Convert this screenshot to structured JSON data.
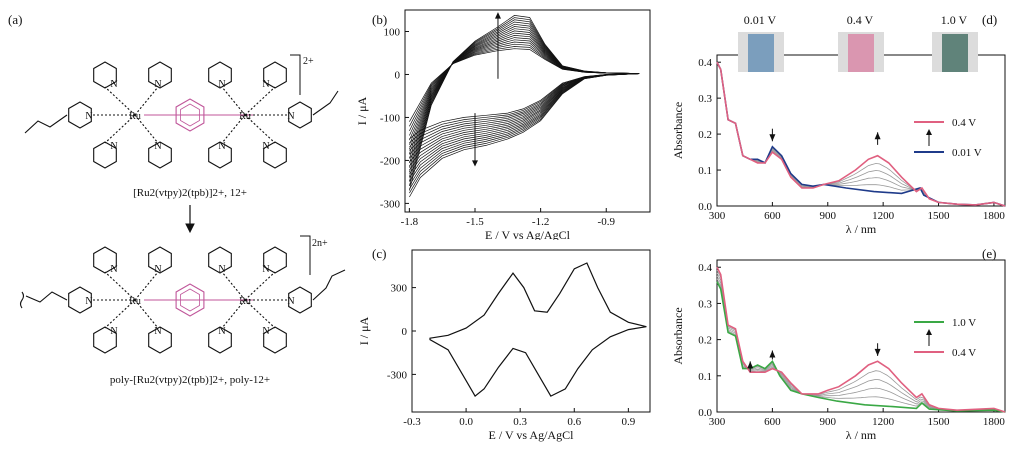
{
  "panel_a": {
    "label": "(a)",
    "monomer_charge": "2+",
    "monomer_caption": "[Ru2(vtpy)2(tpb)]2+, 12+",
    "polymer_charge": "2n+",
    "polymer_caption": "poly-[Ru2(vtpy)2(tpb)]2+, poly-12+",
    "ru_label": "Ru",
    "n_label": "N"
  },
  "colors": {
    "black": "#111111",
    "magenta": "#c0569a",
    "pink": "#e06080",
    "navy": "#1f3b8a",
    "green": "#3aa845",
    "gray": "#999999"
  },
  "chart_data": [
    {
      "panel": "(b)",
      "type": "line",
      "xlabel": "E / V vs Ag/AgCl",
      "ylabel": "I / μA",
      "xlim": [
        -1.82,
        -0.7
      ],
      "ylim": [
        -320,
        150
      ],
      "xticks": [
        -1.8,
        -1.5,
        -1.2,
        -0.9
      ],
      "yticks": [
        100,
        0,
        -100,
        -200,
        -300
      ],
      "n_cycles": 16,
      "first_cycle": {
        "anodic": [
          [
            -1.8,
            -110
          ],
          [
            -1.7,
            -20
          ],
          [
            -1.6,
            25
          ],
          [
            -1.5,
            45
          ],
          [
            -1.4,
            55
          ],
          [
            -1.32,
            60
          ],
          [
            -1.25,
            58
          ],
          [
            -1.18,
            35
          ],
          [
            -1.1,
            12
          ],
          [
            -1.0,
            5
          ],
          [
            -0.9,
            3
          ],
          [
            -0.75,
            2
          ]
        ],
        "cathodic": [
          [
            -0.75,
            2
          ],
          [
            -0.9,
            0
          ],
          [
            -1.0,
            -5
          ],
          [
            -1.1,
            -20
          ],
          [
            -1.2,
            -60
          ],
          [
            -1.28,
            -80
          ],
          [
            -1.35,
            -90
          ],
          [
            -1.45,
            -95
          ],
          [
            -1.55,
            -100
          ],
          [
            -1.65,
            -110
          ],
          [
            -1.75,
            -130
          ],
          [
            -1.8,
            -150
          ]
        ]
      },
      "last_cycle": {
        "anodic": [
          [
            -1.8,
            -270
          ],
          [
            -1.72,
            -100
          ],
          [
            -1.65,
            0
          ],
          [
            -1.55,
            60
          ],
          [
            -1.45,
            95
          ],
          [
            -1.38,
            115
          ],
          [
            -1.3,
            145
          ],
          [
            -1.24,
            130
          ],
          [
            -1.18,
            70
          ],
          [
            -1.1,
            20
          ],
          [
            -1.0,
            8
          ],
          [
            -0.9,
            4
          ],
          [
            -0.75,
            2
          ]
        ],
        "cathodic": [
          [
            -0.75,
            2
          ],
          [
            -0.9,
            -2
          ],
          [
            -1.0,
            -10
          ],
          [
            -1.1,
            -45
          ],
          [
            -1.18,
            -100
          ],
          [
            -1.26,
            -130
          ],
          [
            -1.35,
            -150
          ],
          [
            -1.45,
            -165
          ],
          [
            -1.55,
            -175
          ],
          [
            -1.65,
            -195
          ],
          [
            -1.75,
            -240
          ],
          [
            -1.8,
            -285
          ]
        ]
      },
      "annotations": [
        "growth arrow up near -1.4 V",
        "growth arrow down near -1.5 V"
      ]
    },
    {
      "panel": "(c)",
      "type": "line",
      "xlabel": "E / V vs Ag/AgCl",
      "ylabel": "I / μA",
      "xlim": [
        -0.3,
        1.02
      ],
      "ylim": [
        -560,
        560
      ],
      "xticks": [
        -0.3,
        0.0,
        0.3,
        0.6,
        0.9
      ],
      "yticks": [
        300,
        0,
        -300
      ],
      "series": [
        {
          "points": [
            [
              -0.2,
              -50
            ],
            [
              -0.1,
              -30
            ],
            [
              0.0,
              20
            ],
            [
              0.1,
              110
            ],
            [
              0.18,
              260
            ],
            [
              0.26,
              400
            ],
            [
              0.32,
              300
            ],
            [
              0.38,
              140
            ],
            [
              0.45,
              130
            ],
            [
              0.52,
              260
            ],
            [
              0.6,
              430
            ],
            [
              0.67,
              470
            ],
            [
              0.73,
              300
            ],
            [
              0.8,
              130
            ],
            [
              0.9,
              60
            ],
            [
              1.0,
              30
            ],
            [
              0.9,
              10
            ],
            [
              0.8,
              -40
            ],
            [
              0.7,
              -130
            ],
            [
              0.62,
              -260
            ],
            [
              0.55,
              -400
            ],
            [
              0.47,
              -450
            ],
            [
              0.4,
              -300
            ],
            [
              0.33,
              -150
            ],
            [
              0.26,
              -120
            ],
            [
              0.18,
              -250
            ],
            [
              0.1,
              -400
            ],
            [
              0.05,
              -450
            ],
            [
              -0.02,
              -300
            ],
            [
              -0.1,
              -130
            ],
            [
              -0.2,
              -60
            ]
          ]
        }
      ]
    },
    {
      "panel": "(d)",
      "type": "line",
      "xlabel": "λ / nm",
      "ylabel": "Absorbance",
      "xlim": [
        300,
        1860
      ],
      "ylim": [
        0,
        0.42
      ],
      "xticks": [
        300,
        600,
        900,
        1200,
        1500,
        1800
      ],
      "yticks": [
        0.0,
        0.1,
        0.2,
        0.3,
        0.4
      ],
      "vial_labels": [
        "0.01 V",
        "0.4 V",
        "1.0 V"
      ],
      "vial_colors": [
        "#6a93b7",
        "#d98aa8",
        "#4a7368"
      ],
      "legend": [
        {
          "name": "0.4 V",
          "color": "#e06080"
        },
        {
          "name": "0.01 V",
          "color": "#1f3b8a"
        }
      ],
      "intermediate_spectra": 4,
      "series": [
        {
          "name": "0.01 V",
          "color": "#1f3b8a",
          "points": [
            [
              300,
              0.4
            ],
            [
              320,
              0.38
            ],
            [
              360,
              0.24
            ],
            [
              400,
              0.23
            ],
            [
              440,
              0.14
            ],
            [
              480,
              0.13
            ],
            [
              520,
              0.13
            ],
            [
              560,
              0.12
            ],
            [
              600,
              0.165
            ],
            [
              650,
              0.14
            ],
            [
              700,
              0.09
            ],
            [
              760,
              0.06
            ],
            [
              820,
              0.055
            ],
            [
              880,
              0.06
            ],
            [
              1000,
              0.05
            ],
            [
              1150,
              0.04
            ],
            [
              1300,
              0.035
            ],
            [
              1400,
              0.05
            ],
            [
              1420,
              0.03
            ],
            [
              1500,
              0.01
            ],
            [
              1600,
              0.005
            ],
            [
              1700,
              0.003
            ],
            [
              1800,
              0.01
            ],
            [
              1860,
              0.0
            ]
          ]
        },
        {
          "name": "0.4 V",
          "color": "#e06080",
          "points": [
            [
              300,
              0.4
            ],
            [
              320,
              0.38
            ],
            [
              360,
              0.24
            ],
            [
              400,
              0.23
            ],
            [
              440,
              0.14
            ],
            [
              480,
              0.13
            ],
            [
              520,
              0.12
            ],
            [
              560,
              0.12
            ],
            [
              600,
              0.15
            ],
            [
              650,
              0.13
            ],
            [
              700,
              0.08
            ],
            [
              760,
              0.05
            ],
            [
              820,
              0.05
            ],
            [
              880,
              0.06
            ],
            [
              960,
              0.07
            ],
            [
              1050,
              0.1
            ],
            [
              1120,
              0.13
            ],
            [
              1170,
              0.14
            ],
            [
              1230,
              0.12
            ],
            [
              1300,
              0.08
            ],
            [
              1380,
              0.04
            ],
            [
              1410,
              0.05
            ],
            [
              1450,
              0.02
            ],
            [
              1500,
              0.01
            ],
            [
              1600,
              0.005
            ],
            [
              1700,
              0.003
            ],
            [
              1800,
              0.01
            ],
            [
              1860,
              0.0
            ]
          ]
        }
      ]
    },
    {
      "panel": "(e)",
      "type": "line",
      "xlabel": "λ / nm",
      "ylabel": "Absorbance",
      "xlim": [
        300,
        1860
      ],
      "ylim": [
        0,
        0.42
      ],
      "xticks": [
        300,
        600,
        900,
        1200,
        1500,
        1800
      ],
      "yticks": [
        0.0,
        0.1,
        0.2,
        0.3,
        0.4
      ],
      "legend": [
        {
          "name": "1.0 V",
          "color": "#3aa845"
        },
        {
          "name": "0.4 V",
          "color": "#e06080"
        }
      ],
      "intermediate_spectra": 4,
      "series": [
        {
          "name": "1.0 V",
          "color": "#3aa845",
          "points": [
            [
              300,
              0.36
            ],
            [
              320,
              0.34
            ],
            [
              360,
              0.22
            ],
            [
              400,
              0.21
            ],
            [
              440,
              0.12
            ],
            [
              480,
              0.12
            ],
            [
              520,
              0.13
            ],
            [
              560,
              0.12
            ],
            [
              600,
              0.14
            ],
            [
              640,
              0.1
            ],
            [
              700,
              0.06
            ],
            [
              760,
              0.05
            ],
            [
              850,
              0.04
            ],
            [
              950,
              0.03
            ],
            [
              1100,
              0.02
            ],
            [
              1250,
              0.015
            ],
            [
              1380,
              0.01
            ],
            [
              1410,
              0.025
            ],
            [
              1450,
              0.008
            ],
            [
              1600,
              0.003
            ],
            [
              1800,
              0.005
            ],
            [
              1860,
              0.0
            ]
          ]
        },
        {
          "name": "0.4 V",
          "color": "#e06080",
          "points": [
            [
              300,
              0.4
            ],
            [
              320,
              0.38
            ],
            [
              360,
              0.24
            ],
            [
              400,
              0.23
            ],
            [
              440,
              0.14
            ],
            [
              480,
              0.11
            ],
            [
              520,
              0.11
            ],
            [
              560,
              0.11
            ],
            [
              600,
              0.12
            ],
            [
              650,
              0.11
            ],
            [
              700,
              0.08
            ],
            [
              760,
              0.05
            ],
            [
              850,
              0.05
            ],
            [
              900,
              0.06
            ],
            [
              960,
              0.07
            ],
            [
              1050,
              0.1
            ],
            [
              1120,
              0.13
            ],
            [
              1170,
              0.14
            ],
            [
              1230,
              0.12
            ],
            [
              1300,
              0.08
            ],
            [
              1380,
              0.04
            ],
            [
              1410,
              0.05
            ],
            [
              1450,
              0.02
            ],
            [
              1500,
              0.01
            ],
            [
              1600,
              0.005
            ],
            [
              1800,
              0.01
            ],
            [
              1860,
              0.0
            ]
          ]
        }
      ]
    }
  ]
}
